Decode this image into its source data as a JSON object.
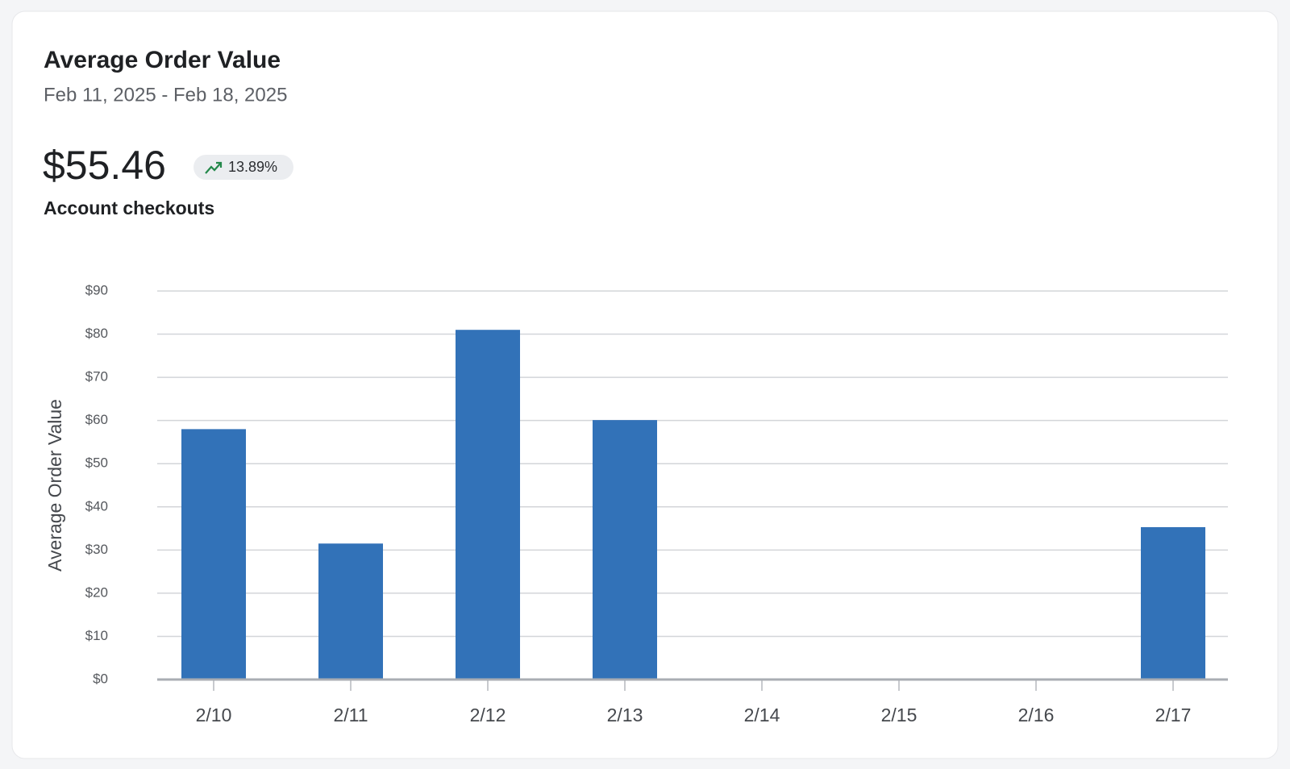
{
  "chart_data": {
    "type": "bar",
    "title": "Average Order Value",
    "subtitle": "Feb 11, 2025 - Feb 18, 2025",
    "kpi_value": "$55.46",
    "kpi_change": "13.89%",
    "kpi_label": "Account checkouts",
    "y_label": "Average Order Value",
    "categories": [
      "2/10",
      "2/11",
      "2/12",
      "2/13",
      "2/14",
      "2/15",
      "2/16",
      "2/17"
    ],
    "values": [
      58,
      31.5,
      81,
      60.1,
      0,
      0,
      0,
      35.3
    ],
    "color": "#3272b8",
    "ylim": [
      0,
      90
    ],
    "yticks": [
      {
        "value": 0,
        "label": "$0"
      },
      {
        "value": 10,
        "label": "$10"
      },
      {
        "value": 20,
        "label": "$20"
      },
      {
        "value": 30,
        "label": "$30"
      },
      {
        "value": 40,
        "label": "$40"
      },
      {
        "value": 50,
        "label": "$50"
      },
      {
        "value": 60,
        "label": "$60"
      },
      {
        "value": 70,
        "label": "$70"
      },
      {
        "value": 80,
        "label": "$80"
      },
      {
        "value": 90,
        "label": "$90"
      }
    ],
    "grid": true
  }
}
